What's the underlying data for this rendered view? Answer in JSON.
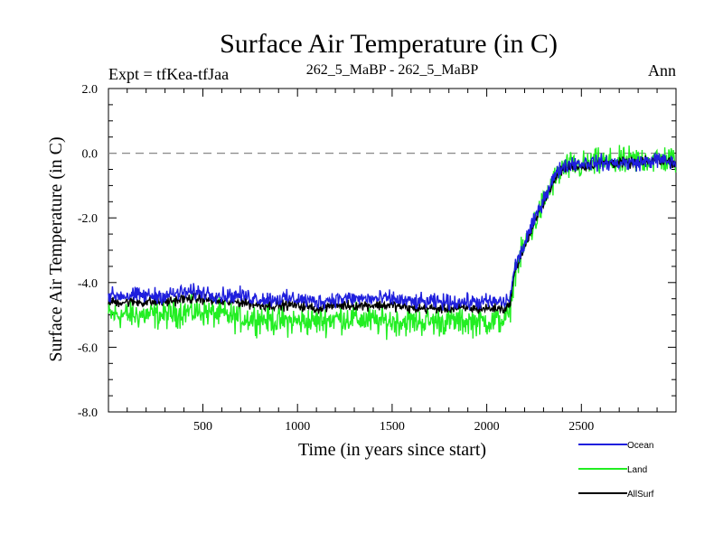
{
  "chart_data": {
    "type": "line",
    "title": "Surface Air Temperature (in C)",
    "subtitle_left": "Expt = tfKea-tfJaa",
    "subtitle_center": "262_5_MaBP - 262_5_MaBP",
    "subtitle_right": "Ann",
    "xlabel": "Time (in years since start)",
    "ylabel": "Surface Air Temperature (in C)",
    "xlim": [
      1,
      3000
    ],
    "ylim": [
      -8.0,
      2.0
    ],
    "x_ticks": [
      500,
      1000,
      1500,
      2000,
      2500
    ],
    "x_tick_labels": [
      "500",
      "1000",
      "1500",
      "2000",
      "2500"
    ],
    "y_ticks": [
      2.0,
      0.0,
      -2.0,
      -4.0,
      -6.0,
      -8.0
    ],
    "y_tick_labels": [
      "2.0",
      "0.0",
      "-2.0",
      "-4.0",
      "-6.0",
      "-8.0"
    ],
    "reference_line": {
      "y": 0.0,
      "style": "dashed",
      "color": "#888888"
    },
    "legend_position": "bottom-right, below plot",
    "series": [
      {
        "name": "Ocean",
        "color": "#1f1fdd",
        "x": [
          1,
          100,
          200,
          300,
          400,
          500,
          600,
          700,
          800,
          900,
          1000,
          1100,
          1200,
          1300,
          1400,
          1500,
          1600,
          1700,
          1800,
          1900,
          2000,
          2050,
          2100,
          2120,
          2130,
          2150,
          2200,
          2250,
          2300,
          2350,
          2400,
          2450,
          2500,
          2600,
          2700,
          2800,
          2900,
          3000
        ],
        "values": [
          -4.4,
          -4.4,
          -4.4,
          -4.4,
          -4.3,
          -4.3,
          -4.4,
          -4.4,
          -4.5,
          -4.5,
          -4.5,
          -4.6,
          -4.5,
          -4.5,
          -4.5,
          -4.5,
          -4.6,
          -4.6,
          -4.6,
          -4.6,
          -4.6,
          -4.6,
          -4.6,
          -4.5,
          -4.2,
          -3.5,
          -2.8,
          -2.1,
          -1.4,
          -0.8,
          -0.4,
          -0.3,
          -0.3,
          -0.3,
          -0.3,
          -0.3,
          -0.2,
          -0.3
        ],
        "noise": 0.12
      },
      {
        "name": "Land",
        "color": "#22ee22",
        "x": [
          1,
          100,
          200,
          300,
          400,
          500,
          600,
          700,
          800,
          900,
          1000,
          1100,
          1200,
          1300,
          1400,
          1500,
          1600,
          1700,
          1800,
          1900,
          2000,
          2050,
          2100,
          2120,
          2130,
          2150,
          2200,
          2250,
          2300,
          2350,
          2400,
          2450,
          2500,
          2600,
          2700,
          2800,
          2900,
          3000
        ],
        "values": [
          -5.0,
          -5.0,
          -5.0,
          -5.0,
          -4.9,
          -4.9,
          -5.0,
          -5.1,
          -5.1,
          -5.2,
          -5.2,
          -5.2,
          -5.1,
          -5.1,
          -5.2,
          -5.2,
          -5.2,
          -5.2,
          -5.2,
          -5.2,
          -5.2,
          -5.2,
          -5.1,
          -5.0,
          -4.4,
          -3.6,
          -2.9,
          -2.2,
          -1.5,
          -0.9,
          -0.5,
          -0.4,
          -0.4,
          -0.3,
          -0.3,
          -0.2,
          -0.2,
          -0.2
        ],
        "noise": 0.22
      },
      {
        "name": "AllSurf",
        "color": "#000000",
        "x": [
          1,
          100,
          200,
          300,
          400,
          500,
          600,
          700,
          800,
          900,
          1000,
          1100,
          1200,
          1300,
          1400,
          1500,
          1600,
          1700,
          1800,
          1900,
          2000,
          2050,
          2100,
          2120,
          2130,
          2150,
          2200,
          2250,
          2300,
          2350,
          2400,
          2450,
          2500,
          2600,
          2700,
          2800,
          2900,
          3000
        ],
        "values": [
          -4.6,
          -4.6,
          -4.6,
          -4.6,
          -4.5,
          -4.5,
          -4.6,
          -4.6,
          -4.7,
          -4.7,
          -4.7,
          -4.8,
          -4.7,
          -4.7,
          -4.7,
          -4.7,
          -4.8,
          -4.8,
          -4.8,
          -4.8,
          -4.8,
          -4.8,
          -4.8,
          -4.7,
          -4.3,
          -3.6,
          -2.9,
          -2.2,
          -1.5,
          -0.9,
          -0.5,
          -0.4,
          -0.4,
          -0.3,
          -0.3,
          -0.3,
          -0.2,
          -0.3
        ],
        "noise": 0.08
      }
    ]
  }
}
